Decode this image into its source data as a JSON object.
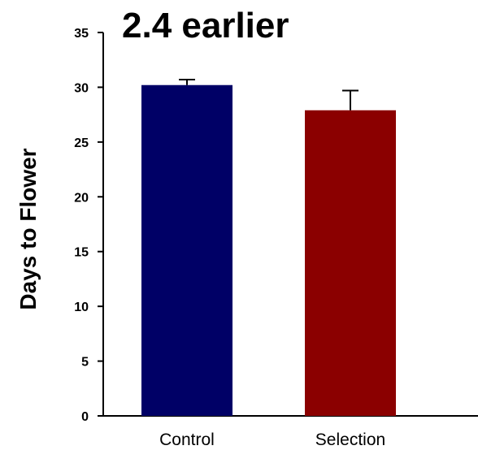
{
  "chart_data": {
    "type": "bar",
    "title": "2.4 earlier",
    "xlabel": "",
    "ylabel": "Days to Flower",
    "categories": [
      "Control",
      "Selection"
    ],
    "values": [
      30.2,
      27.9
    ],
    "error_upper": [
      30.7,
      29.7
    ],
    "colors": [
      "#000066",
      "#8b0000"
    ],
    "ylim": [
      0,
      35
    ],
    "yticks": [
      "0",
      "5",
      "10",
      "15",
      "20",
      "25",
      "30",
      "35"
    ],
    "grid": false
  }
}
